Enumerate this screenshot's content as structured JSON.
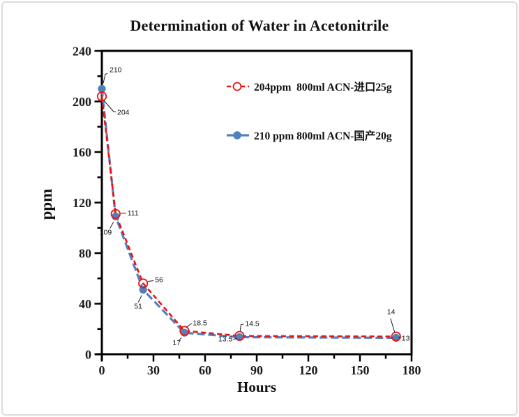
{
  "window": {
    "background": "#ffffff",
    "border_color": "#dcdcdc"
  },
  "chart_data": {
    "type": "line",
    "title": "Determination of Water in Acetonitrile",
    "xlabel": "Hours",
    "ylabel": "ppm",
    "xlim": [
      0,
      180
    ],
    "ylim": [
      0,
      240
    ],
    "x_ticks": [
      0,
      30,
      60,
      90,
      120,
      150,
      180
    ],
    "x_minor_ticks": [
      15,
      45,
      75,
      105,
      135,
      165
    ],
    "y_ticks": [
      0,
      40,
      80,
      120,
      160,
      200,
      240
    ],
    "y_minor_ticks": [
      20,
      60,
      100,
      140,
      180,
      220
    ],
    "grid": false,
    "legend_position": "inside-top-right",
    "axis_color": "#000000",
    "text_color": "#1a1a1a",
    "series": [
      {
        "name": "204ppm  800ml ACN-进口25g",
        "color": "#ee1111",
        "marker": "open-circle",
        "line_style": "dashed",
        "legend_line_style": "dashed",
        "stroke_width": 2.6,
        "dash_pattern": "7 4.5",
        "x": [
          0,
          8,
          24,
          48,
          80,
          171
        ],
        "y": [
          204,
          111,
          56,
          18.5,
          14.5,
          14
        ],
        "point_labels": [
          {
            "text": "204",
            "dx": 22,
            "dy": 26,
            "anchor": "start",
            "leader": [
              [
                3,
                6
              ],
              [
                17,
                22
              ],
              [
                20,
                22
              ]
            ]
          },
          {
            "text": "111",
            "dx": 17,
            "dy": 2,
            "anchor": "start",
            "leader": [
              [
                7,
                -1
              ],
              [
                15,
                -1
              ]
            ]
          },
          {
            "text": "56",
            "dx": 17,
            "dy": -2,
            "anchor": "start",
            "leader": [
              [
                7,
                -3
              ],
              [
                15,
                -4
              ]
            ]
          },
          {
            "text": "18.5",
            "dx": 12,
            "dy": -8,
            "anchor": "start",
            "leader": [
              [
                3,
                -5
              ],
              [
                9,
                -10
              ],
              [
                11,
                -10
              ]
            ]
          },
          {
            "text": "14.5",
            "dx": 8,
            "dy": -14,
            "anchor": "start",
            "leader": [
              [
                1,
                -7
              ],
              [
                2,
                -16
              ],
              [
                6,
                -17
              ]
            ]
          },
          {
            "text": "14",
            "dx": -13,
            "dy": -32,
            "anchor": "start",
            "leader": [
              [
                -2,
                -6
              ],
              [
                -8,
                -26
              ]
            ]
          }
        ]
      },
      {
        "name": "210 ppm 800ml ACN-国产20g",
        "color": "#4f81bd",
        "marker": "filled-circle",
        "line_style": "dashed",
        "legend_line_style": "solid",
        "stroke_width": 3.2,
        "dash_pattern": "11 5",
        "x": [
          0,
          8,
          24,
          48,
          80,
          171
        ],
        "y": [
          210,
          109,
          51,
          17,
          13.5,
          13
        ],
        "point_labels": [
          {
            "text": "210",
            "dx": 11,
            "dy": -24,
            "anchor": "start",
            "leader": [
              [
                2,
                -8
              ],
              [
                5,
                -21
              ],
              [
                8,
                -22
              ]
            ]
          },
          {
            "text": "109",
            "dx": -23,
            "dy": 26,
            "anchor": "start",
            "leader": [
              [
                -3,
                8
              ],
              [
                -8,
                17
              ]
            ]
          },
          {
            "text": "51",
            "dx": -13,
            "dy": 27,
            "anchor": "start",
            "leader": [
              [
                -2,
                8
              ],
              [
                -7,
                18
              ]
            ]
          },
          {
            "text": "17",
            "dx": -17,
            "dy": 18,
            "anchor": "start",
            "leader": [
              [
                -4,
                7
              ],
              [
                -9,
                12
              ]
            ]
          },
          {
            "text": "13.5",
            "dx": -10,
            "dy": 6,
            "anchor": "end",
            "leader": [
              [
                -4,
                2
              ],
              [
                -9,
                3
              ]
            ]
          },
          {
            "text": "13",
            "dx": 8,
            "dy": 4,
            "anchor": "start",
            "leader": [
              [
                3,
                -1
              ],
              [
                6,
                -1
              ]
            ]
          }
        ]
      }
    ]
  }
}
